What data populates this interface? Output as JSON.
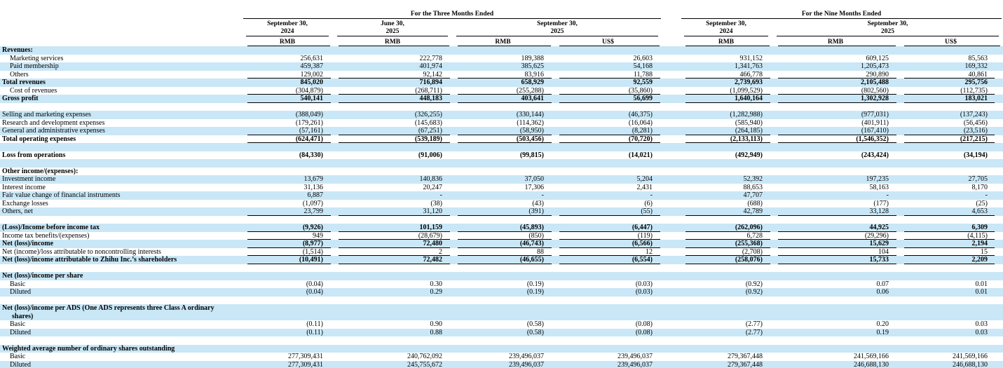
{
  "header": {
    "group1": "For the Three Months Ended",
    "group2": "For the Nine Months Ended",
    "dates": {
      "tm_sep2024": "September 30,\n2024",
      "tm_jun2025": "June 30,\n2025",
      "tm_sep2025": "September 30,\n2025",
      "nm_sep2024": "September 30,\n2024",
      "nm_sep2025": "September 30,\n2025"
    },
    "currencies": {
      "c1": "RMB",
      "c2": "RMB",
      "c3": "RMB",
      "c4": "US$",
      "c5": "RMB",
      "c6": "RMB",
      "c7": "US$"
    }
  },
  "table": {
    "stripe_color": "#c9e7f6",
    "rows": [
      {
        "label": "Revenues:",
        "bold": true
      },
      {
        "label": "Marketing services",
        "indent": true,
        "values": [
          "256,631",
          "222,778",
          "189,388",
          "26,603",
          "931,152",
          "609,125",
          "85,563"
        ]
      },
      {
        "label": "Paid membership",
        "indent": true,
        "values": [
          "459,387",
          "401,974",
          "385,625",
          "54,168",
          "1,341,763",
          "1,205,473",
          "169,332"
        ]
      },
      {
        "label": "Others",
        "indent": true,
        "u": true,
        "values": [
          "129,002",
          "92,142",
          "83,916",
          "11,788",
          "466,778",
          "290,890",
          "40,861"
        ]
      },
      {
        "label": "Total revenues",
        "bold": true,
        "values": [
          "845,020",
          "716,894",
          "658,929",
          "92,559",
          "2,739,693",
          "2,105,488",
          "295,756"
        ]
      },
      {
        "label": "Cost of revenues",
        "indent": true,
        "u": true,
        "values": [
          "(304,879)",
          "(268,711)",
          "(255,288)",
          "(35,860)",
          "(1,099,529)",
          "(802,560)",
          "(112,735)"
        ]
      },
      {
        "label": "Gross profit",
        "bold": true,
        "u": true,
        "values": [
          "540,141",
          "448,183",
          "403,641",
          "56,699",
          "1,640,164",
          "1,302,928",
          "183,021"
        ]
      },
      {
        "blank": true
      },
      {
        "label": "Selling and marketing expenses",
        "values": [
          "(388,049)",
          "(326,255)",
          "(330,144)",
          "(46,375)",
          "(1,282,988)",
          "(977,031)",
          "(137,243)"
        ]
      },
      {
        "label": "Research and development expenses",
        "values": [
          "(179,261)",
          "(145,683)",
          "(114,362)",
          "(16,064)",
          "(585,940)",
          "(401,911)",
          "(56,456)"
        ]
      },
      {
        "label": "General and administrative expenses",
        "u": true,
        "values": [
          "(57,161)",
          "(67,251)",
          "(58,950)",
          "(8,281)",
          "(264,185)",
          "(167,410)",
          "(23,516)"
        ]
      },
      {
        "label": "Total operating expenses",
        "bold": true,
        "u": true,
        "values": [
          "(624,471)",
          "(539,189)",
          "(503,456)",
          "(70,720)",
          "(2,133,113)",
          "(1,546,352)",
          "(217,215)"
        ]
      },
      {
        "blank": true
      },
      {
        "label": "Loss from operations",
        "bold": true,
        "values": [
          "(84,330)",
          "(91,006)",
          "(99,815)",
          "(14,021)",
          "(492,949)",
          "(243,424)",
          "(34,194)"
        ]
      },
      {
        "blank": true
      },
      {
        "label": "Other income/(expenses):",
        "bold": true
      },
      {
        "label": "Investment income",
        "values": [
          "13,679",
          "140,836",
          "37,050",
          "5,204",
          "52,392",
          "197,235",
          "27,705"
        ]
      },
      {
        "label": "Interest income",
        "values": [
          "31,136",
          "20,247",
          "17,306",
          "2,431",
          "88,653",
          "58,163",
          "8,170"
        ]
      },
      {
        "label": "Fair value change of financial instruments",
        "values": [
          "6,887",
          "-",
          "-",
          "-",
          "47,707",
          "-",
          "-"
        ]
      },
      {
        "label": "Exchange losses",
        "values": [
          "(1,097)",
          "(38)",
          "(43)",
          "(6)",
          "(688)",
          "(177)",
          "(25)"
        ]
      },
      {
        "label": "Others, net",
        "u": true,
        "values": [
          "23,799",
          "31,120",
          "(391)",
          "(55)",
          "42,789",
          "33,128",
          "4,653"
        ]
      },
      {
        "blank": true
      },
      {
        "label": "(Loss)/Income before income tax",
        "bold": true,
        "u": true,
        "values": [
          "(9,926)",
          "101,159",
          "(45,893)",
          "(6,447)",
          "(262,096)",
          "44,925",
          "6,309"
        ]
      },
      {
        "label": "Income tax benefits/(expenses)",
        "u": true,
        "values": [
          "949",
          "(28,679)",
          "(850)",
          "(119)",
          "6,728",
          "(29,296)",
          "(4,115)"
        ]
      },
      {
        "label": "Net (loss)/income",
        "bold": true,
        "u": true,
        "values": [
          "(8,977)",
          "72,480",
          "(46,743)",
          "(6,566)",
          "(255,368)",
          "15,629",
          "2,194"
        ]
      },
      {
        "label": "Net (income)/loss attributable to noncontrolling interests",
        "u": true,
        "values": [
          "(1,514)",
          "2",
          "88",
          "12",
          "(2,708)",
          "104",
          "15"
        ]
      },
      {
        "label": "Net (loss)/income attributable to Zhihu Inc.’s shareholders",
        "bold": true,
        "u": true,
        "values": [
          "(10,491)",
          "72,482",
          "(46,655)",
          "(6,554)",
          "(258,076)",
          "15,733",
          "2,209"
        ]
      },
      {
        "blank": true
      },
      {
        "label": "Net (loss)/income per share",
        "bold": true
      },
      {
        "label": "Basic",
        "indent": true,
        "values": [
          "(0.04)",
          "0.30",
          "(0.19)",
          "(0.03)",
          "(0.92)",
          "0.07",
          "0.01"
        ]
      },
      {
        "label": "Diluted",
        "indent": true,
        "values": [
          "(0.04)",
          "0.29",
          "(0.19)",
          "(0.03)",
          "(0.92)",
          "0.06",
          "0.01"
        ]
      },
      {
        "blank": true
      },
      {
        "label": "Net (loss)/income per ADS (One ADS represents three Class A ordinary",
        "label2": "shares)",
        "bold": true
      },
      {
        "label": "Basic",
        "indent": true,
        "values": [
          "(0.11)",
          "0.90",
          "(0.58)",
          "(0.08)",
          "(2.77)",
          "0.20",
          "0.03"
        ]
      },
      {
        "label": "Diluted",
        "indent": true,
        "values": [
          "(0.11)",
          "0.88",
          "(0.58)",
          "(0.08)",
          "(2.77)",
          "0.19",
          "0.03"
        ]
      },
      {
        "blank": true
      },
      {
        "label": "Weighted average number of ordinary shares outstanding",
        "bold": true
      },
      {
        "label": "Basic",
        "indent": true,
        "values": [
          "277,309,431",
          "240,762,092",
          "239,496,037",
          "239,496,037",
          "279,367,448",
          "241,569,166",
          "241,569,166"
        ]
      },
      {
        "label": "Diluted",
        "indent": true,
        "values": [
          "277,309,431",
          "245,755,672",
          "239,496,037",
          "239,496,037",
          "279,367,448",
          "246,688,130",
          "246,688,130"
        ]
      }
    ]
  }
}
